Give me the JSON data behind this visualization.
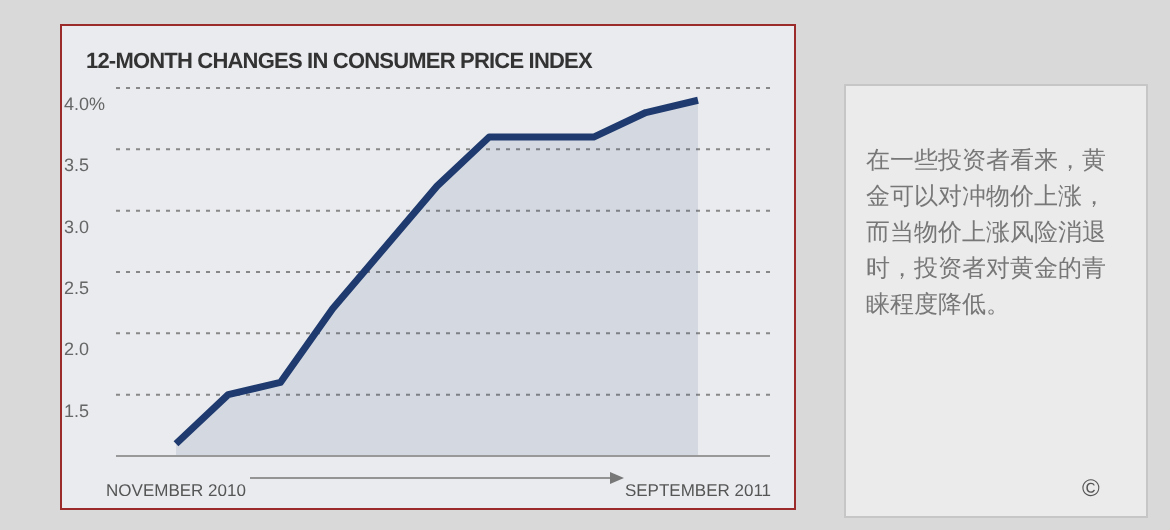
{
  "chart_data": {
    "type": "area",
    "title": "12-MONTH CHANGES IN CONSUMER PRICE INDEX",
    "categories": [
      "NOVEMBER 2010",
      null,
      null,
      null,
      null,
      null,
      null,
      null,
      null,
      null,
      "SEPTEMBER 2011"
    ],
    "series": [
      {
        "color": "#1f3a6e",
        "values": [
          1.1,
          1.5,
          1.6,
          2.2,
          2.7,
          3.2,
          3.6,
          3.6,
          3.6,
          3.8,
          3.9
        ]
      }
    ],
    "ylim": [
      1.0,
      4.0
    ],
    "yticks": [
      1.5,
      {
        "value": 2.0,
        "label": "2.0"
      },
      2.5,
      {
        "value": 3.0,
        "label": "3.0"
      },
      3.5,
      {
        "value": 4.0,
        "label": "4.0%"
      }
    ],
    "grid": "y",
    "annotations": [
      "在一些投资者看来，黄金可以对冲物价上涨，而当物价上涨风险消退时，投资者对黄金的青睐程度降低。",
      "©"
    ]
  }
}
